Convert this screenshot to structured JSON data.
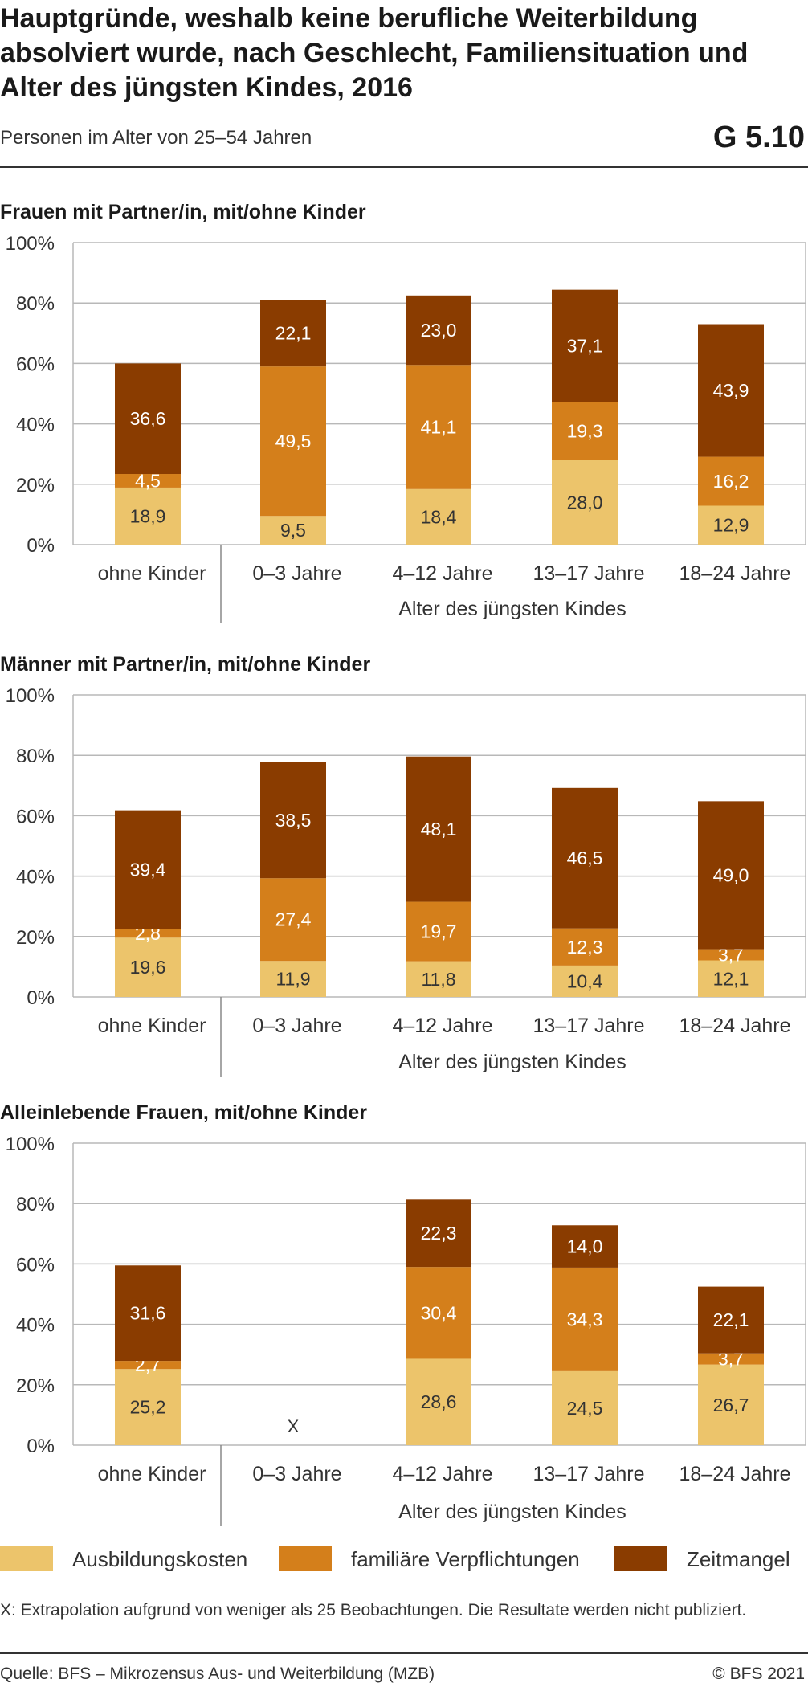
{
  "header": {
    "title": "Hauptgründe, weshalb keine berufliche Weiterbildung absolviert wurde, nach Geschlecht, Familiensituation und Alter des jüngsten Kindes, 2016",
    "subtitle": "Personen im Alter von 25–54 Jahren",
    "code": "G 5.10"
  },
  "legend": {
    "items": [
      {
        "label": "Ausbildungskosten",
        "color": "#ecc46b"
      },
      {
        "label": "familiäre Verpflichtungen",
        "color": "#d47f1b"
      },
      {
        "label": "Zeitmangel",
        "color": "#8a3c00"
      }
    ]
  },
  "footnote": "X: Extrapolation aufgrund von weniger als 25 Beobachtungen. Die Resultate werden nicht publiziert.",
  "footer": {
    "source": "Quelle: BFS – Mikrozensus Aus- und Weiterbildung (MZB)",
    "copyright": "© BFS 2021"
  },
  "chart_data": [
    {
      "type": "bar",
      "stacked": true,
      "title": "Frauen mit Partner/in, mit/ohne Kinder",
      "categories": [
        "ohne Kinder",
        "0–3 Jahre",
        "4–12 Jahre",
        "13–17 Jahre",
        "18–24 Jahre"
      ],
      "xlabel": "Alter des jüngsten Kindes",
      "yticks": [
        "0%",
        "20%",
        "40%",
        "60%",
        "80%",
        "100%"
      ],
      "ylim": [
        0,
        100
      ],
      "series": [
        {
          "name": "Ausbildungskosten",
          "values": [
            18.9,
            9.5,
            18.4,
            28.0,
            12.9
          ],
          "labels": [
            "18,9",
            "9,5",
            "18,4",
            "28,0",
            "12,9"
          ]
        },
        {
          "name": "familiäre Verpflichtungen",
          "values": [
            4.5,
            49.5,
            41.1,
            19.3,
            16.2
          ],
          "labels": [
            "4,5",
            "49,5",
            "41,1",
            "19,3",
            "16,2"
          ]
        },
        {
          "name": "Zeitmangel",
          "values": [
            36.6,
            22.1,
            23.0,
            37.1,
            43.9
          ],
          "labels": [
            "36,6",
            "22,1",
            "23,0",
            "37,1",
            "43,9"
          ]
        }
      ]
    },
    {
      "type": "bar",
      "stacked": true,
      "title": "Männer mit Partner/in, mit/ohne Kinder",
      "categories": [
        "ohne Kinder",
        "0–3 Jahre",
        "4–12 Jahre",
        "13–17 Jahre",
        "18–24 Jahre"
      ],
      "xlabel": "Alter des jüngsten Kindes",
      "yticks": [
        "0%",
        "20%",
        "40%",
        "60%",
        "80%",
        "100%"
      ],
      "ylim": [
        0,
        100
      ],
      "series": [
        {
          "name": "Ausbildungskosten",
          "values": [
            19.6,
            11.9,
            11.8,
            10.4,
            12.1
          ],
          "labels": [
            "19,6",
            "11,9",
            "11,8",
            "10,4",
            "12,1"
          ]
        },
        {
          "name": "familiäre Verpflichtungen",
          "values": [
            2.8,
            27.4,
            19.7,
            12.3,
            3.7
          ],
          "labels": [
            "2,8",
            "27,4",
            "19,7",
            "12,3",
            "3,7"
          ]
        },
        {
          "name": "Zeitmangel",
          "values": [
            39.4,
            38.5,
            48.1,
            46.5,
            49.0
          ],
          "labels": [
            "39,4",
            "38,5",
            "48,1",
            "46,5",
            "49,0"
          ]
        }
      ]
    },
    {
      "type": "bar",
      "stacked": true,
      "title": "Alleinlebende Frauen, mit/ohne Kinder",
      "categories": [
        "ohne Kinder",
        "0–3 Jahre",
        "4–12 Jahre",
        "13–17 Jahre",
        "18–24 Jahre"
      ],
      "xlabel": "Alter des jüngsten Kindes",
      "yticks": [
        "0%",
        "20%",
        "40%",
        "60%",
        "80%",
        "100%"
      ],
      "ylim": [
        0,
        100
      ],
      "missing_marker": "X",
      "missing": [
        false,
        true,
        false,
        false,
        false
      ],
      "series": [
        {
          "name": "Ausbildungskosten",
          "values": [
            25.2,
            0,
            28.6,
            24.5,
            26.7
          ],
          "labels": [
            "25,2",
            "",
            "28,6",
            "24,5",
            "26,7"
          ]
        },
        {
          "name": "familiäre Verpflichtungen",
          "values": [
            2.7,
            0,
            30.4,
            34.3,
            3.7
          ],
          "labels": [
            "2,7",
            "",
            "30,4",
            "34,3",
            "3,7"
          ]
        },
        {
          "name": "Zeitmangel",
          "values": [
            31.6,
            0,
            22.3,
            14.0,
            22.1
          ],
          "labels": [
            "31,6",
            "",
            "22,3",
            "14,0",
            "22,1"
          ]
        }
      ]
    }
  ]
}
